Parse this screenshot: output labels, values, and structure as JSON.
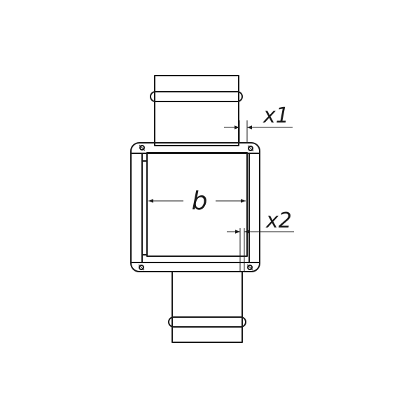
{
  "labels": {
    "b": "b",
    "x1": "x1",
    "x2": "x2"
  },
  "colors": {
    "line": "#1a1a1a",
    "background": "#ffffff"
  }
}
